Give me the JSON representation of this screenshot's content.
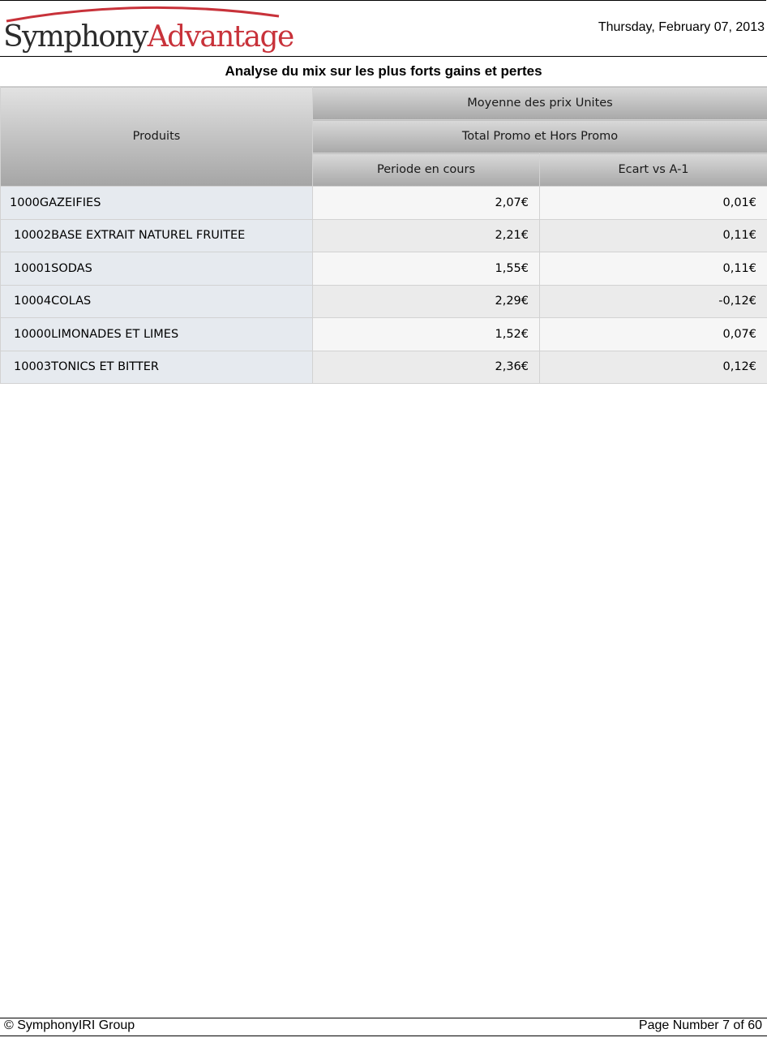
{
  "header": {
    "logo": {
      "word1": "Symphony",
      "word2": "Advantage"
    },
    "date": "Thursday, February 07, 2013"
  },
  "report": {
    "title": "Analyse du mix sur les plus forts gains et pertes"
  },
  "table": {
    "row_header": "Produits",
    "measure_header": "Moyenne des prix Unites",
    "group_header": "Total Promo et Hors Promo",
    "columns": [
      "Periode en cours",
      "Ecart vs A-1"
    ],
    "rows": [
      {
        "product": "1000GAZEIFIES",
        "periode": "2,07€",
        "ecart": "0,01€"
      },
      {
        "product": "10002BASE EXTRAIT NATUREL FRUITEE",
        "periode": "2,21€",
        "ecart": "0,11€"
      },
      {
        "product": "10001SODAS",
        "periode": "1,55€",
        "ecart": "0,11€"
      },
      {
        "product": "10004COLAS",
        "periode": "2,29€",
        "ecart": "-0,12€"
      },
      {
        "product": "10000LIMONADES ET LIMES",
        "periode": "1,52€",
        "ecart": "0,07€"
      },
      {
        "product": "10003TONICS ET BITTER",
        "periode": "2,36€",
        "ecart": "0,12€"
      }
    ]
  },
  "footer": {
    "copyright": "© SymphonyIRI Group",
    "page_number": "Page Number 7 of 60"
  },
  "colors": {
    "logo_dark": "#2b2b2b",
    "logo_red": "#c8323a",
    "header_gray": "#bdbdbd",
    "product_cell": "#e6eaef"
  }
}
